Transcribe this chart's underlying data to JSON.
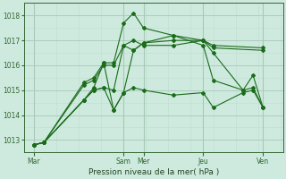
{
  "background_color": "#ceeade",
  "grid_color_major": "#a8c8b8",
  "grid_color_minor": "#c0ddd0",
  "line_color": "#1a6b1a",
  "title": "Pression niveau de la mer( hPa )",
  "ylabel_ticks": [
    1013,
    1014,
    1015,
    1016,
    1017,
    1018
  ],
  "xlabels": [
    "Mar",
    "Sam",
    "Mer",
    "Jeu",
    "Ven"
  ],
  "xtick_positions": [
    0,
    9,
    11,
    17,
    23
  ],
  "xmin": -1,
  "xmax": 25,
  "ymin": 1012.5,
  "ymax": 1018.5,
  "series": [
    {
      "x": [
        0,
        1,
        5,
        6,
        7,
        8,
        9,
        10,
        11,
        14,
        17,
        18,
        23
      ],
      "y": [
        1012.8,
        1012.9,
        1015.3,
        1015.5,
        1016.1,
        1016.1,
        1017.7,
        1018.1,
        1017.5,
        1017.2,
        1017.0,
        1016.8,
        1016.7
      ]
    },
    {
      "x": [
        0,
        1,
        5,
        6,
        7,
        8,
        9,
        10,
        11,
        14,
        17,
        18,
        23
      ],
      "y": [
        1012.8,
        1012.9,
        1015.2,
        1015.4,
        1016.0,
        1016.0,
        1016.8,
        1017.0,
        1016.8,
        1016.8,
        1017.0,
        1016.7,
        1016.6
      ]
    },
    {
      "x": [
        0,
        1,
        5,
        6,
        7,
        8,
        9,
        10,
        11,
        14,
        17,
        18,
        21,
        22,
        23
      ],
      "y": [
        1012.8,
        1012.9,
        1014.6,
        1015.1,
        1016.1,
        1014.2,
        1014.9,
        1016.6,
        1016.9,
        1017.2,
        1016.8,
        1015.4,
        1015.0,
        1015.6,
        1014.3
      ]
    },
    {
      "x": [
        0,
        1,
        5,
        6,
        7,
        8,
        9,
        10,
        11,
        14,
        17,
        18,
        21,
        22,
        23
      ],
      "y": [
        1012.8,
        1012.9,
        1014.6,
        1015.0,
        1015.1,
        1015.0,
        1016.8,
        1016.6,
        1016.9,
        1017.0,
        1017.0,
        1016.5,
        1015.0,
        1015.1,
        1014.3
      ]
    },
    {
      "x": [
        0,
        1,
        5,
        6,
        7,
        8,
        9,
        10,
        11,
        14,
        17,
        18,
        21,
        22,
        23
      ],
      "y": [
        1012.8,
        1012.9,
        1014.6,
        1015.0,
        1015.1,
        1014.2,
        1014.9,
        1015.1,
        1015.0,
        1014.8,
        1014.9,
        1014.3,
        1014.9,
        1015.0,
        1014.3
      ]
    }
  ]
}
